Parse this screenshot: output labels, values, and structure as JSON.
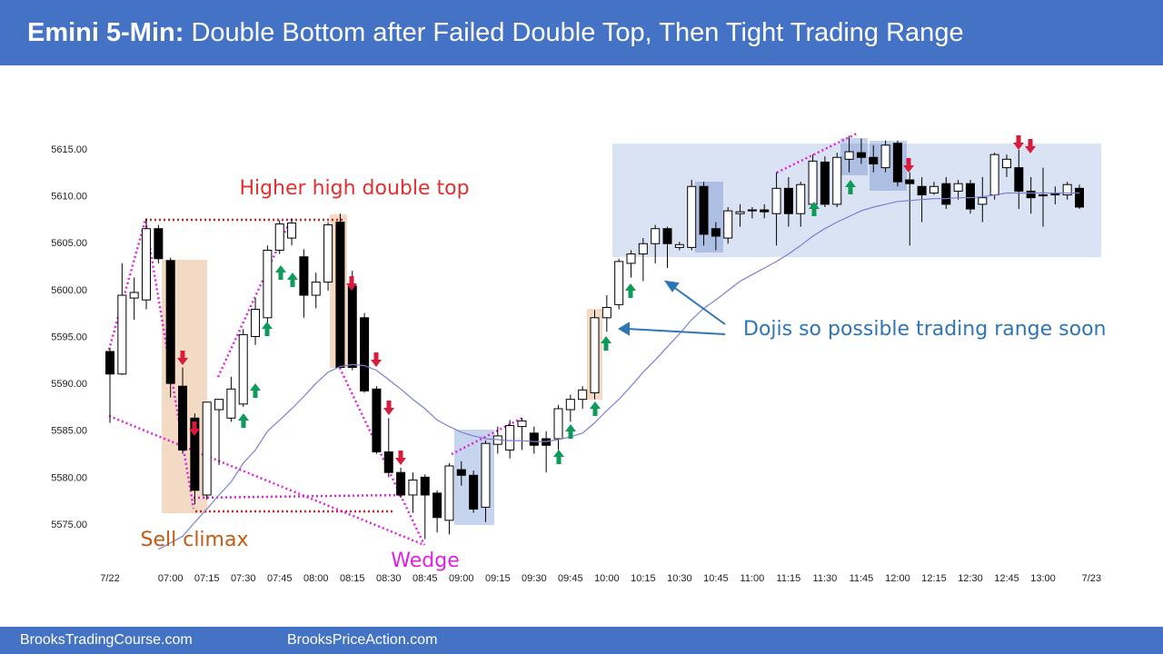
{
  "header": {
    "title_lead": "Emini 5-Min:",
    "title": "Double Bottom after Failed Double Top, Then Tight Trading Range"
  },
  "footer": {
    "left": "BrooksTradingCourse.com",
    "right": "BrooksPriceAction.com"
  },
  "chart_data": {
    "type": "candlestick",
    "up_color": "#ffffff",
    "down_color": "#000000",
    "categories": [
      "7/22",
      null,
      null,
      null,
      null,
      "07:00",
      null,
      null,
      "07:15",
      null,
      null,
      "07:30",
      null,
      null,
      "07:45",
      null,
      null,
      "08:00",
      null,
      null,
      "08:15",
      null,
      null,
      "08:30",
      null,
      null,
      "08:45",
      null,
      null,
      "09:00",
      null,
      null,
      "09:15",
      null,
      null,
      "09:30",
      null,
      null,
      "09:45",
      null,
      null,
      "10:00",
      null,
      null,
      "10:15",
      null,
      null,
      "10:30",
      null,
      null,
      "10:45",
      null,
      null,
      "11:00",
      null,
      null,
      "11:15",
      null,
      null,
      "11:30",
      null,
      null,
      "11:45",
      null,
      null,
      "12:00",
      null,
      null,
      "12:15",
      null,
      null,
      "12:30",
      null,
      null,
      "12:45",
      null,
      null,
      "13:00",
      null,
      null,
      null
    ],
    "x_end_label": "7/23",
    "open": [
      5593.5,
      5591.1,
      5599.2,
      5599,
      5606.6,
      5603.2,
      5589.8,
      5586.4,
      5578.2,
      5587.3,
      5586.4,
      5587.9,
      5595.1,
      5597.1,
      5604.3,
      5605.6,
      5603.6,
      5599.5,
      5600.9,
      5607.3,
      5600.5,
      5597.1,
      5589.5,
      5582.8,
      5580.6,
      5578.2,
      5580.1,
      5578.4,
      5575.5,
      5580.9,
      5580.3,
      5576.9,
      5583.6,
      5583,
      5585.5,
      5584.8,
      5584.2,
      5584.2,
      5587.3,
      5588.4,
      5589.1,
      5597.1,
      5598.5,
      5602.9,
      5603.9,
      5605,
      5606.6,
      5604.6,
      5604.6,
      5611.1,
      5606.6,
      5605.6,
      5608.2,
      5608.5,
      5608.6,
      5608.2,
      5610.9,
      5608.2,
      5609.2,
      5613.7,
      5609.2,
      5614,
      5614.7,
      5614.2,
      5613.1,
      5615.7,
      5611.8,
      5611.1,
      5610.4,
      5611.4,
      5610.6,
      5611.4,
      5609.2,
      5610.2,
      5613.1,
      5613.1,
      5610.6,
      5610.1,
      5610.2,
      5610.2,
      5610.9
    ],
    "high": [
      5593.9,
      5602.9,
      5601.4,
      5607.7,
      5607,
      5603.5,
      5591.8,
      5586.9,
      5588.1,
      5588.4,
      5590.8,
      5595.9,
      5599.2,
      5604.8,
      5607.5,
      5607.7,
      5604.4,
      5601.9,
      5607.3,
      5608.2,
      5602.1,
      5597.6,
      5589.8,
      5586.4,
      5581.1,
      5580.6,
      5580.4,
      5578.7,
      5581.6,
      5581.8,
      5580.8,
      5584,
      5585.5,
      5586.2,
      5586.4,
      5585.5,
      5585,
      5587.8,
      5588.9,
      5589.8,
      5597.9,
      5599.5,
      5603.4,
      5604.3,
      5605.6,
      5607,
      5606.8,
      5605.2,
      5611.8,
      5611.6,
      5607.3,
      5608.9,
      5609.2,
      5608.9,
      5609.2,
      5612.6,
      5612.1,
      5611.6,
      5614.5,
      5614.3,
      5614.7,
      5616.5,
      5616.2,
      5615.5,
      5616,
      5616,
      5612.6,
      5612.1,
      5611.6,
      5612.1,
      5611.8,
      5611.8,
      5612.1,
      5614.7,
      5614.5,
      5615,
      5612.1,
      5613.1,
      5611.1,
      5611.6,
      5611.3
    ],
    "low": [
      5585.9,
      5591,
      5596.9,
      5598,
      5602.9,
      5588.6,
      5582.6,
      5577.2,
      5577.7,
      5581.4,
      5586,
      5587.6,
      5594.2,
      5596.6,
      5603.9,
      5604.8,
      5597.1,
      5598.1,
      5600,
      5591.8,
      5591.5,
      5589.1,
      5582.6,
      5580.1,
      5577.9,
      5576.3,
      5573.5,
      5574.2,
      5574,
      5579.2,
      5576.3,
      5575.3,
      5582.6,
      5582.1,
      5583,
      5582.6,
      5580.6,
      5583,
      5586,
      5587.4,
      5588.4,
      5595.6,
      5598,
      5601.4,
      5601,
      5602.9,
      5602.4,
      5604.3,
      5604.3,
      5604.8,
      5604.3,
      5605,
      5606.8,
      5607.7,
      5607.7,
      5604.8,
      5606.8,
      5606.8,
      5608.7,
      5608.9,
      5608.9,
      5612.6,
      5613.5,
      5612.6,
      5612.6,
      5611.1,
      5604.8,
      5607.3,
      5610.2,
      5608.7,
      5609.7,
      5608.2,
      5607.3,
      5609.7,
      5612.1,
      5608.7,
      5608.2,
      5606.8,
      5609.2,
      5609.7,
      5608.7
    ],
    "close": [
      5591.1,
      5599.5,
      5599.8,
      5606.6,
      5603.4,
      5590.1,
      5583,
      5578.7,
      5588.1,
      5588.4,
      5589.5,
      5595.3,
      5598,
      5604.3,
      5607.1,
      5607.2,
      5599.5,
      5600.9,
      5607,
      5591.8,
      5591.8,
      5589.3,
      5582.8,
      5580.6,
      5578.2,
      5579.8,
      5578.2,
      5575.8,
      5581.3,
      5580.3,
      5576.7,
      5583.7,
      5584.5,
      5585.6,
      5586.1,
      5583.5,
      5583.5,
      5587.4,
      5588.4,
      5589.4,
      5597.1,
      5598.2,
      5603.1,
      5603.9,
      5605,
      5606.6,
      5605,
      5604.9,
      5611.1,
      5606,
      5605.8,
      5608.5,
      5608.4,
      5608.6,
      5608.4,
      5610.9,
      5608.2,
      5611.3,
      5613.8,
      5609.2,
      5614.2,
      5614.8,
      5614.2,
      5613.5,
      5615.5,
      5611.6,
      5611.4,
      5610.2,
      5611.1,
      5609.2,
      5611.4,
      5608.7,
      5609.9,
      5614.5,
      5614,
      5610.6,
      5609.9,
      5610.2,
      5610.3,
      5611.3,
      5608.9
    ],
    "moving_average": {
      "color": "#7b7fd6",
      "values": [
        null,
        null,
        null,
        null,
        5572.4,
        5573.1,
        5573.8,
        5575.3,
        5576.7,
        5578.2,
        5579.6,
        5581.6,
        5583,
        5585,
        5586.2,
        5587.4,
        5588.7,
        5590.1,
        5591.3,
        5591.9,
        5592.1,
        5592,
        5591.5,
        5590.5,
        5589.5,
        5588.4,
        5587.4,
        5586.2,
        5585.5,
        5584.9,
        5584.5,
        5584.2,
        5584.1,
        5584,
        5584,
        5583.9,
        5583.9,
        5584.1,
        5584.4,
        5584.8,
        5585.9,
        5587.2,
        5588.4,
        5589.8,
        5591.3,
        5592.6,
        5594,
        5595.4,
        5596.9,
        5598.1,
        5599,
        5600,
        5601,
        5601.7,
        5602.4,
        5603.1,
        5603.9,
        5604.8,
        5605.8,
        5606.6,
        5607.3,
        5607.9,
        5608.5,
        5608.9,
        5609.2,
        5609.5,
        5609.6,
        5609.7,
        5609.8,
        5609.8,
        5609.9,
        5609.9,
        5610,
        5610.2,
        5610.4,
        5610.4,
        5610.4,
        5610.4,
        5610.4,
        5610.4,
        5610.4
      ]
    },
    "ylim": [
      5571,
      5617
    ],
    "yticks": [
      {
        "value": 5575,
        "label": "5575.00"
      },
      {
        "value": 5580,
        "label": "5580.00"
      },
      {
        "value": 5585,
        "label": "5585.00"
      },
      {
        "value": 5590,
        "label": "5590.00"
      },
      {
        "value": 5595,
        "label": "5595.00"
      },
      {
        "value": 5600,
        "label": "5600.00"
      },
      {
        "value": 5605,
        "label": "5605.00"
      },
      {
        "value": 5610,
        "label": "5610.00"
      },
      {
        "value": 5615,
        "label": "5615.00"
      }
    ],
    "grid": false,
    "annotations": [
      "Higher high double top",
      "Sell climax",
      "Wedge",
      "Dojis so possible trading range soon"
    ]
  }
}
